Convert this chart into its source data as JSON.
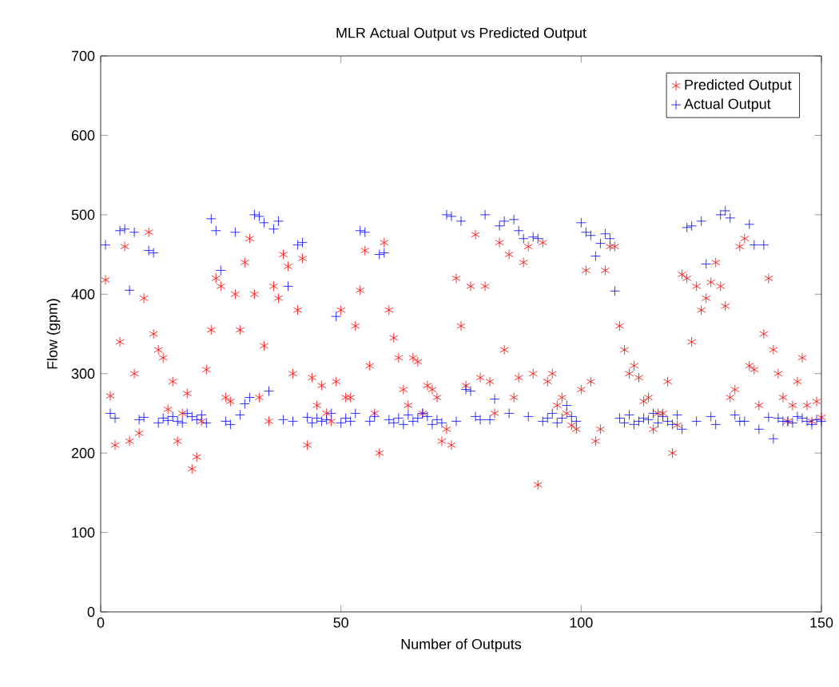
{
  "chart_data": {
    "type": "scatter",
    "title": "MLR Actual Output vs Predicted Output",
    "xlabel": "Number of Outputs",
    "ylabel": "Flow (gpm)",
    "x": [
      1,
      2,
      3,
      4,
      5,
      6,
      7,
      8,
      9,
      10,
      11,
      12,
      13,
      14,
      15,
      16,
      17,
      18,
      19,
      20,
      21,
      22,
      23,
      24,
      25,
      26,
      27,
      28,
      29,
      30,
      31,
      32,
      33,
      34,
      35,
      36,
      37,
      38,
      39,
      40,
      41,
      42,
      43,
      44,
      45,
      46,
      47,
      48,
      49,
      50,
      51,
      52,
      53,
      54,
      55,
      56,
      57,
      58,
      59,
      60,
      61,
      62,
      63,
      64,
      65,
      66,
      67,
      68,
      69,
      70,
      71,
      72,
      73,
      74,
      75,
      76,
      77,
      78,
      79,
      80,
      81,
      82,
      83,
      84,
      85,
      86,
      87,
      88,
      89,
      90,
      91,
      92,
      93,
      94,
      95,
      96,
      97,
      98,
      99,
      100,
      101,
      102,
      103,
      104,
      105,
      106,
      107,
      108,
      109,
      110,
      111,
      112,
      113,
      114,
      115,
      116,
      117,
      118,
      119,
      120,
      121,
      122,
      123,
      124,
      125,
      126,
      127,
      128,
      129,
      130,
      131,
      132,
      133,
      134,
      135,
      136,
      137,
      138,
      139,
      140,
      141,
      142,
      143,
      144,
      145,
      146,
      147,
      148,
      149,
      150
    ],
    "series": [
      {
        "name": "Predicted Output",
        "color": "#ff0000",
        "values": [
          418,
          272,
          210,
          340,
          460,
          215,
          300,
          225,
          395,
          478,
          350,
          330,
          320,
          255,
          290,
          215,
          250,
          275,
          180,
          195,
          240,
          305,
          355,
          420,
          410,
          270,
          265,
          400,
          355,
          440,
          470,
          400,
          270,
          335,
          240,
          410,
          395,
          450,
          435,
          300,
          380,
          445,
          210,
          295,
          260,
          285,
          250,
          240,
          290,
          380,
          270,
          270,
          360,
          405,
          455,
          310,
          250,
          200,
          465,
          380,
          345,
          320,
          280,
          260,
          320,
          315,
          250,
          285,
          280,
          270,
          215,
          230,
          210,
          420,
          360,
          285,
          410,
          475,
          295,
          410,
          290,
          250,
          465,
          330,
          450,
          270,
          295,
          440,
          460,
          300,
          160,
          465,
          290,
          300,
          260,
          270,
          250,
          235,
          230,
          280,
          430,
          290,
          215,
          230,
          430,
          460,
          460,
          360,
          330,
          300,
          310,
          295,
          265,
          270,
          230,
          250,
          250,
          290,
          200,
          235,
          425,
          420,
          340,
          410,
          380,
          395,
          415,
          440,
          410,
          385,
          270,
          280,
          460,
          470,
          310,
          305,
          260,
          350,
          420,
          330,
          300,
          270,
          240,
          260,
          290,
          320,
          260,
          240,
          265,
          245
        ]
      },
      {
        "name": "Actual Output",
        "color": "#0000ff",
        "values": [
          462,
          250,
          244,
          480,
          482,
          405,
          478,
          242,
          245,
          455,
          452,
          238,
          244,
          241,
          246,
          240,
          238,
          250,
          246,
          242,
          248,
          238,
          495,
          480,
          430,
          240,
          236,
          478,
          248,
          262,
          270,
          500,
          498,
          490,
          278,
          482,
          492,
          242,
          410,
          240,
          462,
          465,
          245,
          238,
          244,
          240,
          242,
          250,
          372,
          238,
          244,
          240,
          250,
          480,
          478,
          240,
          246,
          450,
          452,
          242,
          238,
          244,
          236,
          248,
          240,
          244,
          250,
          246,
          236,
          242,
          238,
          500,
          498,
          240,
          492,
          280,
          278,
          246,
          242,
          500,
          242,
          268,
          486,
          492,
          250,
          494,
          480,
          470,
          246,
          472,
          470,
          240,
          244,
          250,
          238,
          244,
          260,
          246,
          240,
          490,
          478,
          474,
          448,
          464,
          476,
          470,
          404,
          244,
          238,
          248,
          236,
          240,
          244,
          242,
          250,
          238,
          246,
          240,
          236,
          248,
          230,
          484,
          486,
          240,
          492,
          438,
          246,
          236,
          500,
          505,
          496,
          248,
          240,
          240,
          488,
          462,
          230,
          462,
          245,
          218,
          244,
          240,
          240,
          238,
          246,
          244,
          240,
          236,
          242,
          240
        ]
      }
    ],
    "xlim": [
      0,
      150
    ],
    "ylim": [
      0,
      700
    ],
    "xticks": [
      0,
      50,
      100,
      150
    ],
    "yticks": [
      0,
      100,
      200,
      300,
      400,
      500,
      600,
      700
    ],
    "legend": "top right",
    "grid": false,
    "marker": "cross"
  }
}
